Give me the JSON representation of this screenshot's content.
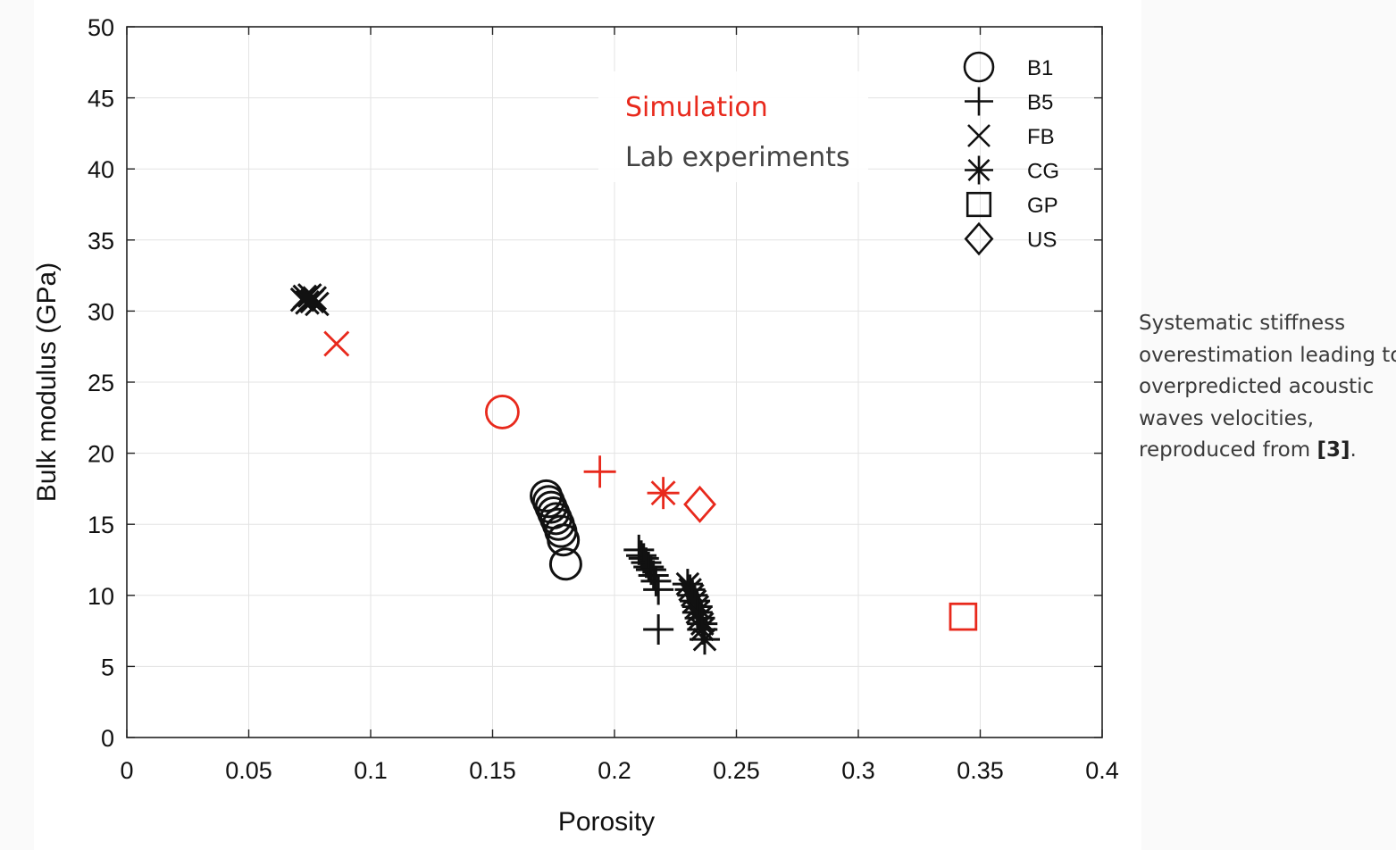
{
  "chart_data": {
    "type": "scatter",
    "xlabel": "Porosity",
    "ylabel": "Bulk modulus (GPa)",
    "xlim": [
      0,
      0.4
    ],
    "ylim": [
      0,
      50
    ],
    "xticks": [
      0,
      0.05,
      0.1,
      0.15,
      0.2,
      0.25,
      0.3,
      0.35,
      0.4
    ],
    "xtick_labels": [
      "0",
      "0.05",
      "0.1",
      "0.15",
      "0.2",
      "0.25",
      "0.3",
      "0.35",
      "0.4"
    ],
    "yticks": [
      0,
      5,
      10,
      15,
      20,
      25,
      30,
      35,
      40,
      45,
      50
    ],
    "ytick_labels": [
      "0",
      "5",
      "10",
      "15",
      "20",
      "25",
      "30",
      "35",
      "40",
      "45",
      "50"
    ],
    "grid": true,
    "legend_position": "top-right",
    "legend": [
      {
        "label": "B1",
        "marker": "circle"
      },
      {
        "label": "B5",
        "marker": "plus"
      },
      {
        "label": "FB",
        "marker": "x"
      },
      {
        "label": "CG",
        "marker": "asterisk"
      },
      {
        "label": "GP",
        "marker": "square"
      },
      {
        "label": "US",
        "marker": "diamond"
      }
    ],
    "annotations": [
      {
        "text": "Simulation",
        "color": "#e8291c"
      },
      {
        "text": "Lab experiments",
        "color": "#444444"
      }
    ],
    "series": [
      {
        "group": "Simulation",
        "color": "#e8291c",
        "points": [
          {
            "marker": "x",
            "x": 0.086,
            "y": 27.7
          },
          {
            "marker": "circle",
            "x": 0.154,
            "y": 22.9
          },
          {
            "marker": "plus",
            "x": 0.194,
            "y": 18.7
          },
          {
            "marker": "asterisk",
            "x": 0.22,
            "y": 17.2
          },
          {
            "marker": "diamond",
            "x": 0.235,
            "y": 16.4
          },
          {
            "marker": "square",
            "x": 0.343,
            "y": 8.5
          }
        ]
      },
      {
        "group": "Lab experiments",
        "color": "#111111",
        "points": [
          {
            "marker": "x",
            "x": 0.072,
            "y": 30.8
          },
          {
            "marker": "x",
            "x": 0.073,
            "y": 31.0
          },
          {
            "marker": "x",
            "x": 0.074,
            "y": 30.6
          },
          {
            "marker": "x",
            "x": 0.075,
            "y": 31.1
          },
          {
            "marker": "x",
            "x": 0.076,
            "y": 30.7
          },
          {
            "marker": "x",
            "x": 0.077,
            "y": 30.9
          },
          {
            "marker": "x",
            "x": 0.078,
            "y": 30.5
          },
          {
            "marker": "circle",
            "x": 0.172,
            "y": 17.0
          },
          {
            "marker": "circle",
            "x": 0.173,
            "y": 16.6
          },
          {
            "marker": "circle",
            "x": 0.174,
            "y": 16.2
          },
          {
            "marker": "circle",
            "x": 0.175,
            "y": 15.8
          },
          {
            "marker": "circle",
            "x": 0.176,
            "y": 15.4
          },
          {
            "marker": "circle",
            "x": 0.177,
            "y": 15.0
          },
          {
            "marker": "circle",
            "x": 0.178,
            "y": 14.5
          },
          {
            "marker": "circle",
            "x": 0.179,
            "y": 13.9
          },
          {
            "marker": "circle",
            "x": 0.18,
            "y": 12.2
          },
          {
            "marker": "plus",
            "x": 0.21,
            "y": 13.2
          },
          {
            "marker": "plus",
            "x": 0.211,
            "y": 12.8
          },
          {
            "marker": "plus",
            "x": 0.212,
            "y": 12.6
          },
          {
            "marker": "plus",
            "x": 0.213,
            "y": 12.3
          },
          {
            "marker": "plus",
            "x": 0.214,
            "y": 12.0
          },
          {
            "marker": "plus",
            "x": 0.215,
            "y": 11.8
          },
          {
            "marker": "plus",
            "x": 0.216,
            "y": 11.4
          },
          {
            "marker": "plus",
            "x": 0.217,
            "y": 11.0
          },
          {
            "marker": "plus",
            "x": 0.218,
            "y": 10.4
          },
          {
            "marker": "plus",
            "x": 0.218,
            "y": 7.6
          },
          {
            "marker": "asterisk",
            "x": 0.23,
            "y": 10.8
          },
          {
            "marker": "asterisk",
            "x": 0.231,
            "y": 10.4
          },
          {
            "marker": "asterisk",
            "x": 0.232,
            "y": 10.0
          },
          {
            "marker": "asterisk",
            "x": 0.233,
            "y": 9.6
          },
          {
            "marker": "asterisk",
            "x": 0.234,
            "y": 9.2
          },
          {
            "marker": "asterisk",
            "x": 0.234,
            "y": 8.8
          },
          {
            "marker": "asterisk",
            "x": 0.235,
            "y": 8.4
          },
          {
            "marker": "asterisk",
            "x": 0.236,
            "y": 8.0
          },
          {
            "marker": "asterisk",
            "x": 0.236,
            "y": 7.6
          },
          {
            "marker": "asterisk",
            "x": 0.237,
            "y": 6.9
          }
        ]
      }
    ]
  },
  "caption": {
    "lines": [
      "Systematic stiffness",
      "overestimation leading to",
      "overpredicted acoustic",
      "waves velocities,"
    ],
    "last_line_prefix": "reproduced from ",
    "reference": "[3]",
    "last_line_suffix": "."
  }
}
